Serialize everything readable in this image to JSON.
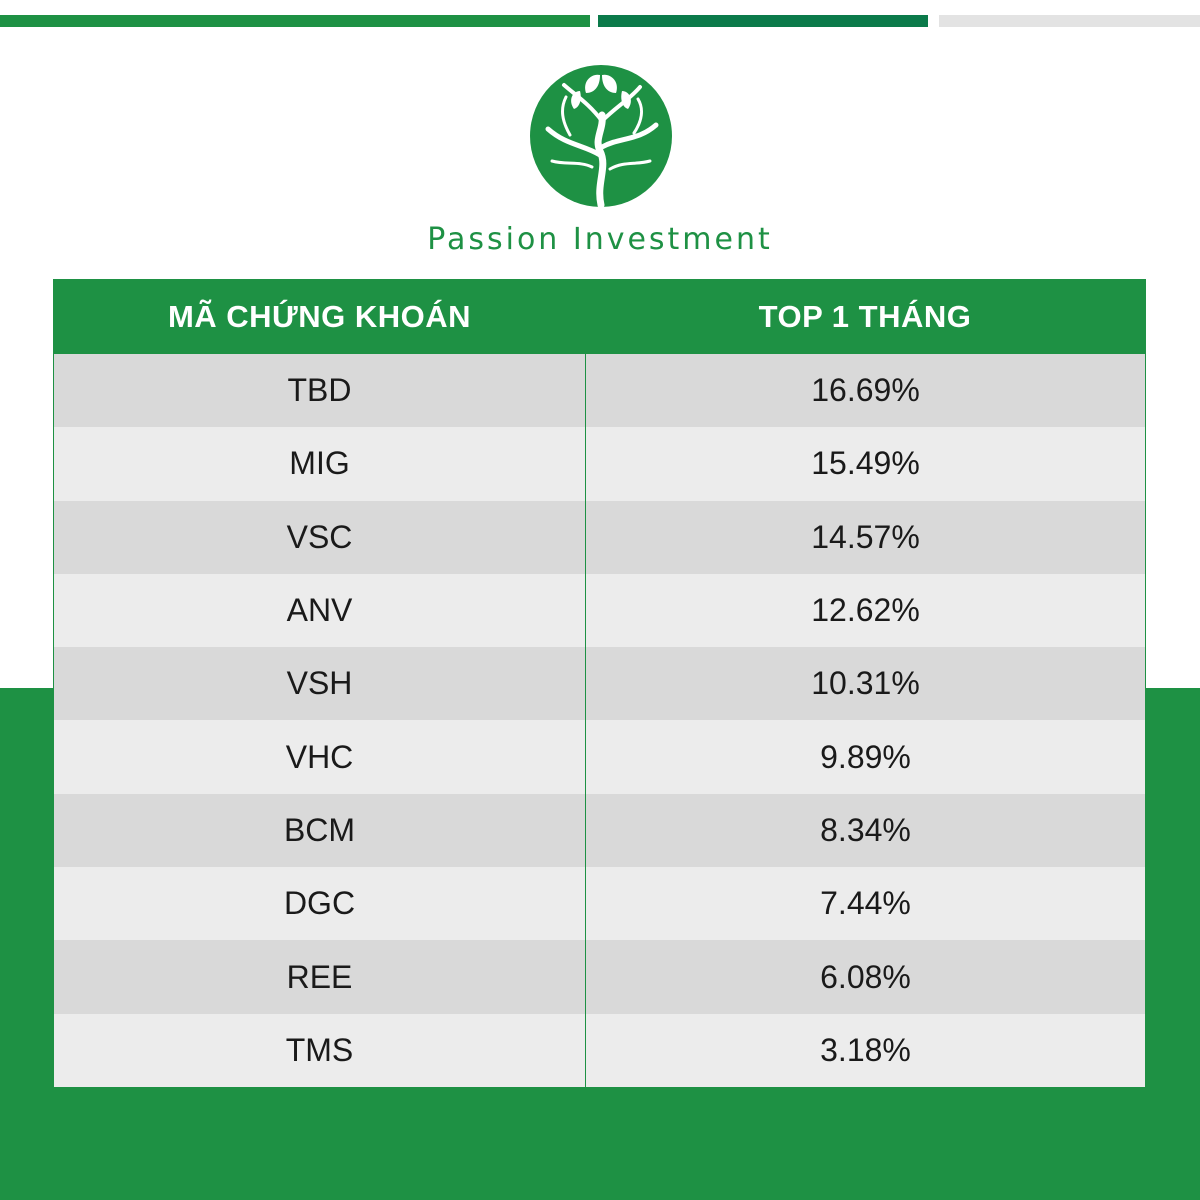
{
  "brand": {
    "name": "Passion Investment"
  },
  "colors": {
    "primary_green": "#1e9144",
    "dark_green": "#0b7a4a",
    "row_dark": "#d9d9d9",
    "row_light": "#ececec"
  },
  "table": {
    "headers": [
      "MÃ CHỨNG KHOÁN",
      "TOP 1 THÁNG"
    ],
    "rows": [
      {
        "code": "TBD",
        "value": "16.69%"
      },
      {
        "code": "MIG",
        "value": "15.49%"
      },
      {
        "code": "VSC",
        "value": "14.57%"
      },
      {
        "code": "ANV",
        "value": "12.62%"
      },
      {
        "code": "VSH",
        "value": "10.31%"
      },
      {
        "code": "VHC",
        "value": "9.89%"
      },
      {
        "code": "BCM",
        "value": "8.34%"
      },
      {
        "code": "DGC",
        "value": "7.44%"
      },
      {
        "code": "REE",
        "value": "6.08%"
      },
      {
        "code": "TMS",
        "value": "3.18%"
      }
    ]
  }
}
